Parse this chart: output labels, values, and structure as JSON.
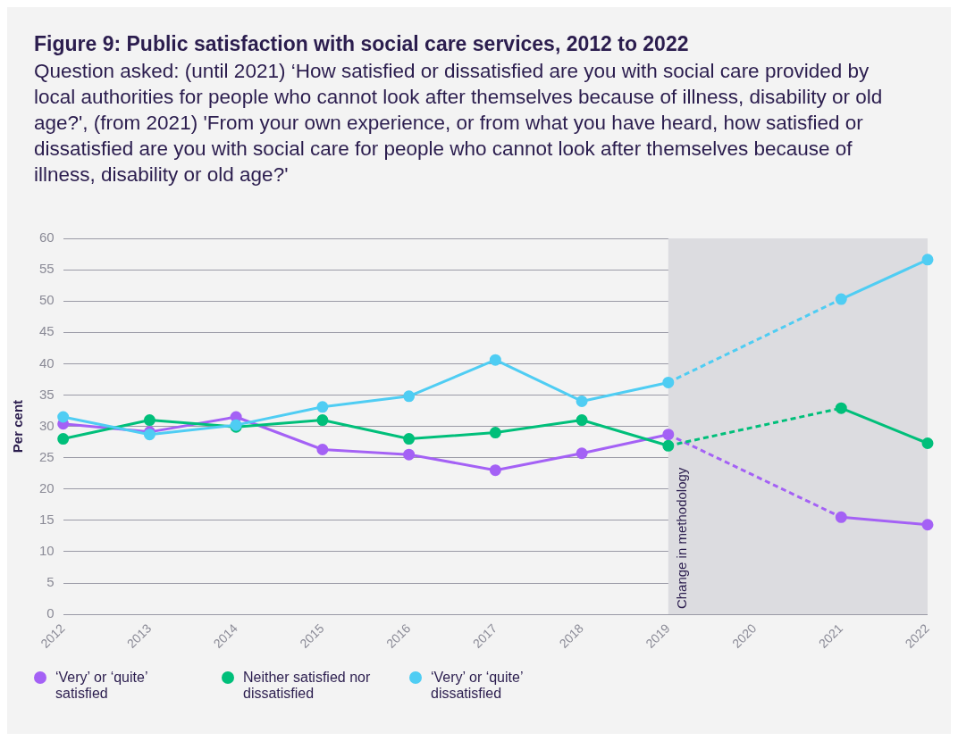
{
  "chart_data": {
    "type": "line",
    "title": "Figure 9: Public satisfaction with social care services, 2012 to 2022",
    "subtitle": "Question asked: (until 2021) ‘How satisfied or dissatisfied are you with social care provided by local authorities for people who cannot look after themselves because of illness, disability or old age?', (from 2021) 'From your own experience, or from what you have heard, how satisfied or dissatisfied are you with social care for people who cannot look after themselves because of illness, disability or old age?'",
    "ylabel": "Per cent",
    "categories": [
      "2012",
      "2013",
      "2014",
      "2015",
      "2016",
      "2017",
      "2018",
      "2019",
      "2020",
      "2021",
      "2022"
    ],
    "series": [
      {
        "name": "‘Very’ or ‘quite’ satisfied",
        "color": "#a461f5",
        "values": [
          30.4,
          29.1,
          31.5,
          26.3,
          25.5,
          23.0,
          25.7,
          28.7,
          null,
          15.5,
          14.3
        ]
      },
      {
        "name": "Neither satisfied nor dissatisfied",
        "color": "#00bf7a",
        "values": [
          28.0,
          31.0,
          29.9,
          31.0,
          28.0,
          29.0,
          31.0,
          26.9,
          null,
          32.9,
          27.3
        ]
      },
      {
        "name": "‘Very’ or ‘quite’ dissatisfied",
        "color": "#4fcdf3",
        "values": [
          31.5,
          28.7,
          30.2,
          33.1,
          34.8,
          40.6,
          34.0,
          37.0,
          null,
          50.3,
          56.6
        ]
      }
    ],
    "ylim": [
      0,
      60
    ],
    "yticks": [
      0,
      5,
      10,
      15,
      20,
      25,
      30,
      35,
      40,
      45,
      50,
      55,
      60
    ],
    "bands": [
      {
        "axis": "x",
        "from": "2019",
        "to": "2022",
        "label": "Change in methodology",
        "color": "#dcdce0"
      }
    ],
    "grid": "y",
    "legend": "bottom left",
    "marker": "circle",
    "line_style": "solid"
  }
}
